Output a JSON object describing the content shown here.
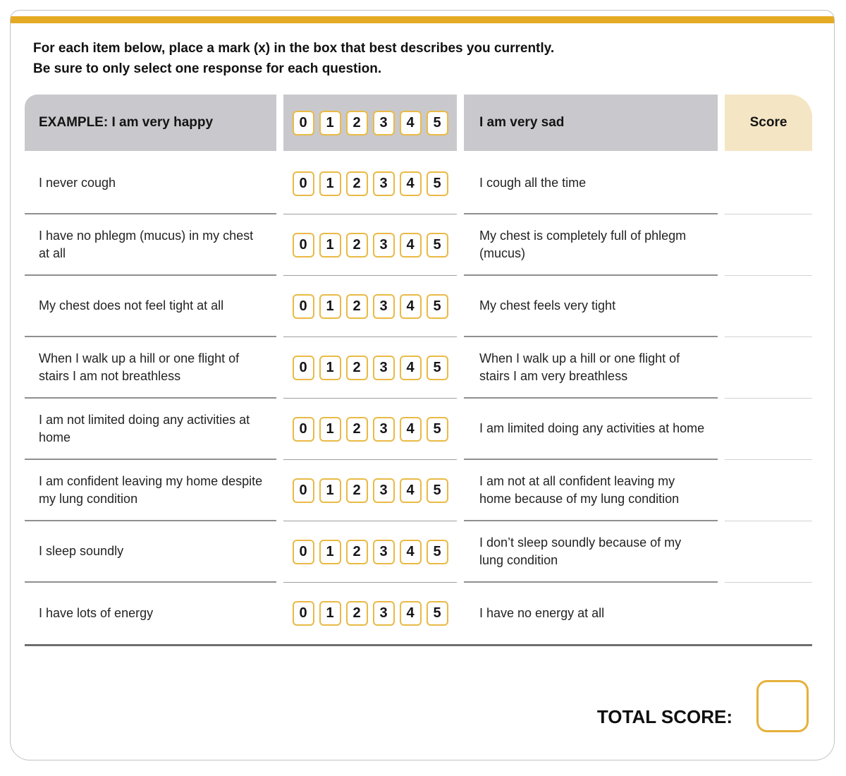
{
  "instructions": {
    "line1": "For each item below, place a mark (x) in the box that best describes you currently.",
    "line2": "Be sure to only select one response for each question."
  },
  "header": {
    "left_label": "EXAMPLE: I am very happy",
    "right_label": "I am very sad",
    "score_label": "Score",
    "scale": [
      "0",
      "1",
      "2",
      "3",
      "4",
      "5"
    ]
  },
  "rows": [
    {
      "left": "I never cough",
      "right": "I cough all the time"
    },
    {
      "left": "I have no phlegm (mucus) in my chest at all",
      "right": "My chest is completely full of phlegm (mucus)"
    },
    {
      "left": "My chest does not feel tight at all",
      "right": "My chest feels very tight"
    },
    {
      "left": "When I walk up a hill or one flight of stairs I am not breathless",
      "right": "When I walk up a hill or one flight of stairs I am very breathless"
    },
    {
      "left": "I am not limited doing any activities at home",
      "right": "I am limited doing any activities at home"
    },
    {
      "left": "I am confident leaving my home despite my lung condition",
      "right": "I am not at all confident leaving my home because of my lung condition"
    },
    {
      "left": "I sleep soundly",
      "right": "I don’t sleep soundly because of my lung condition"
    },
    {
      "left": "I have lots of energy",
      "right": "I have no energy at all"
    }
  ],
  "footer": {
    "total_label": "TOTAL SCORE:"
  },
  "colors": {
    "accent_gold": "#e5aa24",
    "box_border_gold": "#e9ba45",
    "header_gray": "#c9c8cc",
    "score_beige": "#f4e5c4"
  }
}
